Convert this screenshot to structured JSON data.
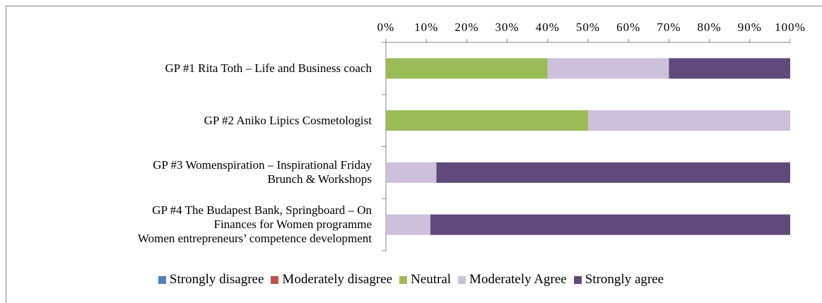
{
  "chart_data": {
    "type": "stacked-bar-horizontal",
    "categories": [
      "GP #1 Rita Toth – Life and Business coach",
      "GP #2 Aniko Lipics Cosmetologist",
      "GP #3  Womenspiration – Inspirational Friday\nBrunch & Workshops",
      "GP #4 The Budapest Bank, Springboard – On\nFinances for Women programme\nWomen entrepreneurs’ competence development"
    ],
    "series": [
      {
        "name": "Strongly disagree",
        "color": "#4f81bd",
        "values": [
          0,
          0,
          0,
          0
        ]
      },
      {
        "name": "Moderately disagree",
        "color": "#c0504d",
        "values": [
          0,
          0,
          0,
          0
        ]
      },
      {
        "name": "Neutral",
        "color": "#9bbb59",
        "values": [
          40,
          50,
          0,
          0
        ]
      },
      {
        "name": "Moderately Agree",
        "color": "#ccc0da",
        "values": [
          30,
          50,
          12.5,
          11
        ]
      },
      {
        "name": "Strongly agree",
        "color": "#604a7b",
        "values": [
          30,
          0,
          87.5,
          89
        ]
      }
    ],
    "xlim": [
      0,
      100
    ],
    "xticks": [
      {
        "value": 0,
        "label": "0%"
      },
      {
        "value": 10,
        "label": "10%"
      },
      {
        "value": 20,
        "label": "20%"
      },
      {
        "value": 30,
        "label": "30%"
      },
      {
        "value": 40,
        "label": "40%"
      },
      {
        "value": 50,
        "label": "50%"
      },
      {
        "value": 60,
        "label": "60%"
      },
      {
        "value": 70,
        "label": "70%"
      },
      {
        "value": 80,
        "label": "80%"
      },
      {
        "value": 90,
        "label": "90%"
      },
      {
        "value": 100,
        "label": "100%"
      }
    ],
    "grid": false,
    "legend": "bottom"
  }
}
